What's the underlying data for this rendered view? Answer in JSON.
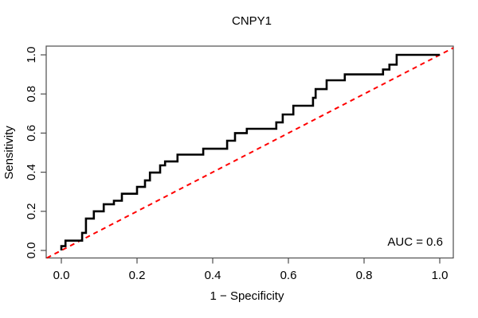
{
  "figure": {
    "background": "#ffffff"
  },
  "chart_data": {
    "type": "line",
    "subtype": "roc-step-curve",
    "title": "CNPY1",
    "xlabel": "1 − Specificity",
    "ylabel": "Sensitivity",
    "xlim": [
      0.0,
      1.0
    ],
    "ylim": [
      0.0,
      1.0
    ],
    "grid": false,
    "legend_position": "none",
    "x_ticks": [
      0.0,
      0.2,
      0.4,
      0.6,
      0.8,
      1.0
    ],
    "x_tick_labels": [
      "0.0",
      "0.2",
      "0.4",
      "0.6",
      "0.8",
      "1.0"
    ],
    "y_ticks": [
      0.0,
      0.2,
      0.4,
      0.6,
      0.8,
      1.0
    ],
    "y_tick_labels": [
      "0.0",
      "0.2",
      "0.4",
      "0.6",
      "0.8",
      "1.0"
    ],
    "annotation": {
      "text": "AUC = 0.6",
      "position": "bottom-right"
    },
    "auc": 0.6,
    "colors": {
      "roc_curve": "#000000",
      "diagonal": "#ff0000",
      "axis_box": "#4d4d4d",
      "text": "#000000"
    },
    "series": [
      {
        "name": "ROC curve",
        "style": "solid-step",
        "color": "#000000",
        "points": [
          [
            0.0,
            0.0
          ],
          [
            0.0,
            0.022
          ],
          [
            0.011,
            0.022
          ],
          [
            0.011,
            0.05
          ],
          [
            0.055,
            0.05
          ],
          [
            0.055,
            0.09
          ],
          [
            0.065,
            0.09
          ],
          [
            0.065,
            0.163
          ],
          [
            0.086,
            0.163
          ],
          [
            0.086,
            0.2
          ],
          [
            0.112,
            0.2
          ],
          [
            0.112,
            0.236
          ],
          [
            0.139,
            0.236
          ],
          [
            0.139,
            0.254
          ],
          [
            0.16,
            0.254
          ],
          [
            0.16,
            0.29
          ],
          [
            0.2,
            0.29
          ],
          [
            0.2,
            0.325
          ],
          [
            0.221,
            0.325
          ],
          [
            0.221,
            0.358
          ],
          [
            0.234,
            0.358
          ],
          [
            0.234,
            0.398
          ],
          [
            0.261,
            0.398
          ],
          [
            0.261,
            0.435
          ],
          [
            0.274,
            0.435
          ],
          [
            0.274,
            0.455
          ],
          [
            0.307,
            0.455
          ],
          [
            0.307,
            0.49
          ],
          [
            0.375,
            0.49
          ],
          [
            0.375,
            0.52
          ],
          [
            0.438,
            0.52
          ],
          [
            0.438,
            0.561
          ],
          [
            0.459,
            0.561
          ],
          [
            0.459,
            0.6
          ],
          [
            0.49,
            0.6
          ],
          [
            0.49,
            0.622
          ],
          [
            0.568,
            0.622
          ],
          [
            0.568,
            0.655
          ],
          [
            0.585,
            0.655
          ],
          [
            0.585,
            0.695
          ],
          [
            0.613,
            0.695
          ],
          [
            0.613,
            0.74
          ],
          [
            0.665,
            0.74
          ],
          [
            0.665,
            0.78
          ],
          [
            0.672,
            0.78
          ],
          [
            0.672,
            0.825
          ],
          [
            0.701,
            0.825
          ],
          [
            0.701,
            0.87
          ],
          [
            0.749,
            0.87
          ],
          [
            0.749,
            0.9
          ],
          [
            0.85,
            0.9
          ],
          [
            0.85,
            0.925
          ],
          [
            0.867,
            0.925
          ],
          [
            0.867,
            0.95
          ],
          [
            0.886,
            0.95
          ],
          [
            0.886,
            1.0
          ],
          [
            1.0,
            1.0
          ]
        ]
      },
      {
        "name": "chance diagonal",
        "style": "dashed",
        "color": "#ff0000",
        "points": [
          [
            0.0,
            0.0
          ],
          [
            1.0,
            1.0
          ]
        ]
      }
    ]
  }
}
